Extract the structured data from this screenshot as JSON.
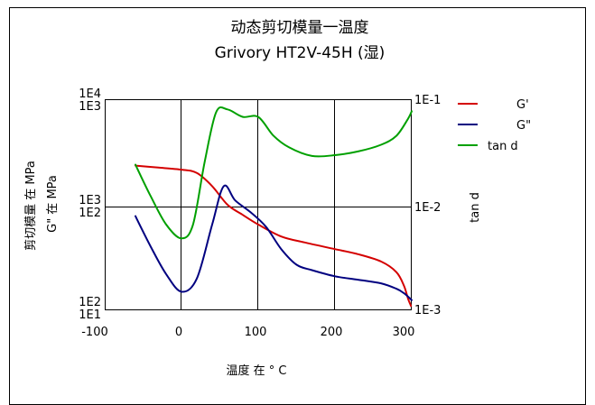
{
  "chart_data": {
    "type": "line",
    "title": "动态剪切模量一温度",
    "subtitle": "Grivory HT2V-45H (湿)",
    "xlabel": "温度 在 ° C",
    "ylabel_left_1": "剪切模量 在   MPa",
    "ylabel_left_2": "G\" 在   MPa",
    "ylabel_right": "tan d",
    "x_ticks": [
      "-100",
      "0",
      "100",
      "200",
      "300"
    ],
    "xlim": [
      -100,
      300
    ],
    "left_ticks_top": [
      "1E4",
      "1E3"
    ],
    "left_ticks_mid": [
      "1E3",
      "1E2"
    ],
    "left_ticks_bottom": [
      "1E2",
      "1E1"
    ],
    "right_ticks": [
      "1E-1",
      "1E-2",
      "1E-3"
    ],
    "log_scale": true,
    "grid": true,
    "legend_position": "right",
    "series": [
      {
        "name": "G'",
        "color": "#d40000",
        "axis": "G' (MPa)",
        "ylim": [
          100,
          10000
        ],
        "points": [
          [
            -60,
            2350
          ],
          [
            -30,
            2250
          ],
          [
            0,
            2150
          ],
          [
            20,
            2000
          ],
          [
            40,
            1500
          ],
          [
            60,
            1000
          ],
          [
            80,
            800
          ],
          [
            100,
            650
          ],
          [
            130,
            500
          ],
          [
            160,
            440
          ],
          [
            200,
            380
          ],
          [
            230,
            340
          ],
          [
            260,
            290
          ],
          [
            280,
            230
          ],
          [
            290,
            170
          ],
          [
            295,
            130
          ],
          [
            299,
            110
          ]
        ]
      },
      {
        "name": "G\"",
        "color": "#000080",
        "axis": "G\" (MPa)",
        "ylim": [
          10,
          1000
        ],
        "points": [
          [
            -60,
            78
          ],
          [
            -40,
            40
          ],
          [
            -20,
            22
          ],
          [
            0,
            15
          ],
          [
            20,
            20
          ],
          [
            40,
            65
          ],
          [
            55,
            150
          ],
          [
            70,
            110
          ],
          [
            90,
            85
          ],
          [
            110,
            62
          ],
          [
            130,
            38
          ],
          [
            150,
            27
          ],
          [
            170,
            24
          ],
          [
            200,
            21
          ],
          [
            230,
            19.5
          ],
          [
            260,
            18
          ],
          [
            280,
            16
          ],
          [
            290,
            14.5
          ],
          [
            300,
            12.5
          ]
        ]
      },
      {
        "name": "tan d",
        "color": "#00a000",
        "axis": "tan d",
        "ylim": [
          0.001,
          0.1
        ],
        "points": [
          [
            -60,
            0.024
          ],
          [
            -40,
            0.012
          ],
          [
            -20,
            0.0065
          ],
          [
            0,
            0.0048
          ],
          [
            15,
            0.0065
          ],
          [
            30,
            0.025
          ],
          [
            45,
            0.075
          ],
          [
            60,
            0.08
          ],
          [
            80,
            0.068
          ],
          [
            100,
            0.068
          ],
          [
            120,
            0.045
          ],
          [
            140,
            0.035
          ],
          [
            170,
            0.029
          ],
          [
            200,
            0.0295
          ],
          [
            230,
            0.032
          ],
          [
            260,
            0.037
          ],
          [
            280,
            0.045
          ],
          [
            295,
            0.065
          ],
          [
            300,
            0.077
          ]
        ]
      }
    ]
  }
}
